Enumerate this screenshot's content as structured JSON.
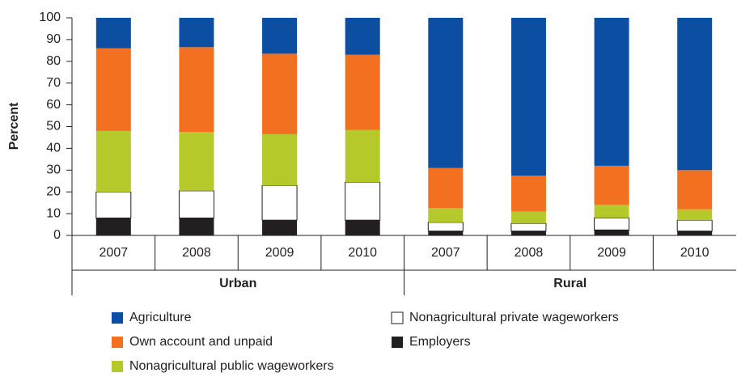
{
  "chart_data": {
    "type": "stacked_bar",
    "y_label": "Percent",
    "categories": [
      "2007",
      "2008",
      "2009",
      "2010",
      "2007",
      "2008",
      "2009",
      "2010"
    ],
    "groups": [
      {
        "label": "Urban",
        "size": 4
      },
      {
        "label": "Rural",
        "size": 4
      }
    ],
    "series": [
      {
        "name": "Employers",
        "color": "#231f20",
        "values": [
          8,
          8,
          7,
          7,
          2,
          2,
          2.5,
          2
        ]
      },
      {
        "name": "Nonagricultural private wageworkers",
        "color": "#ffffff",
        "values": [
          12,
          12.5,
          16,
          17.5,
          4,
          3.5,
          5.5,
          5
        ]
      },
      {
        "name": "Nonagricultural public wageworkers",
        "color": "#b5c92a",
        "values": [
          28,
          27,
          23.5,
          24,
          6.5,
          5.5,
          6,
          5
        ]
      },
      {
        "name": "Own account and unpaid",
        "color": "#f37021",
        "values": [
          38,
          39,
          37,
          34.5,
          18.5,
          16.5,
          18,
          18
        ]
      },
      {
        "name": "Agriculture",
        "color": "#0b4ea2",
        "values": [
          14,
          13.5,
          16.5,
          17,
          69,
          72.5,
          68,
          70
        ]
      }
    ],
    "ylim": [
      0,
      100
    ],
    "yticks": [
      0,
      10,
      20,
      30,
      40,
      50,
      60,
      70,
      80,
      90,
      100
    ]
  }
}
